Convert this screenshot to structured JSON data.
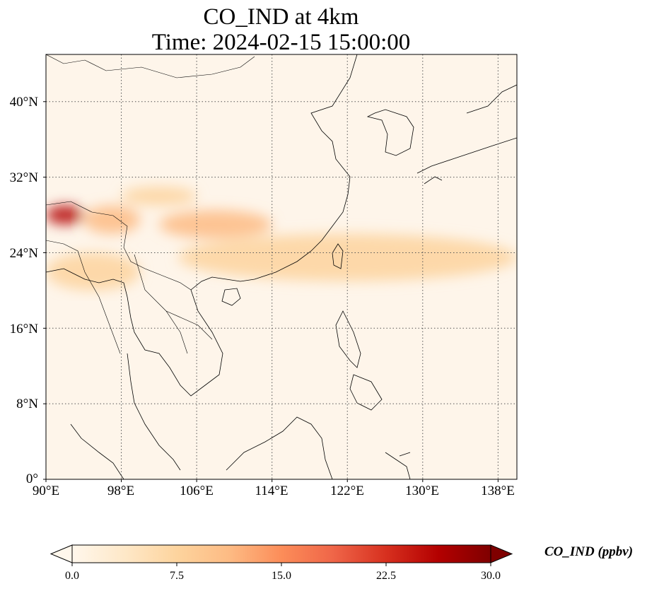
{
  "title": {
    "line1": "CO_IND at 4km",
    "line2": "Time: 2024-02-15 15:00:00"
  },
  "map": {
    "extent": {
      "lon": [
        90,
        140
      ],
      "lat": [
        0,
        45
      ]
    },
    "lon_ticks": [
      90,
      98,
      106,
      114,
      122,
      130,
      138
    ],
    "lat_ticks": [
      0,
      8,
      16,
      24,
      32,
      40
    ],
    "lon_labels": [
      "90°E",
      "98°E",
      "106°E",
      "114°E",
      "122°E",
      "130°E",
      "138°E"
    ],
    "lat_labels": [
      "0°",
      "8°N",
      "16°N",
      "24°N",
      "32°N",
      "40°N"
    ],
    "gridlines": "dotted",
    "field": "CO_IND",
    "units": "ppbv",
    "plumes": [
      {
        "lon": [
          90,
          94
        ],
        "lat": [
          27,
          29
        ],
        "level": 27
      },
      {
        "lon": [
          94,
          100
        ],
        "lat": [
          26,
          29
        ],
        "level": 12
      },
      {
        "lon": [
          102,
          114
        ],
        "lat": [
          25.5,
          28.5
        ],
        "level": 13
      },
      {
        "lon": [
          98,
          106
        ],
        "lat": [
          29,
          31
        ],
        "level": 6
      },
      {
        "lon": [
          104,
          140
        ],
        "lat": [
          21,
          26
        ],
        "level": 7
      },
      {
        "lon": [
          90,
          100
        ],
        "lat": [
          20,
          24
        ],
        "level": 6
      }
    ]
  },
  "colorbar": {
    "label": "CO_IND (ppbv)",
    "min": 0.0,
    "max": 30.0,
    "extend": "both",
    "colormap": "OrRd",
    "ticks": [
      "0.0",
      "7.5",
      "15.0",
      "22.5",
      "30.0"
    ],
    "tick_values": [
      0.0,
      7.5,
      15.0,
      22.5,
      30.0
    ],
    "colors": [
      "#fff7ec",
      "#fee8c8",
      "#fdd49e",
      "#fdbb84",
      "#fc8d59",
      "#ef6548",
      "#d7301f",
      "#b30000",
      "#7f0000"
    ]
  }
}
